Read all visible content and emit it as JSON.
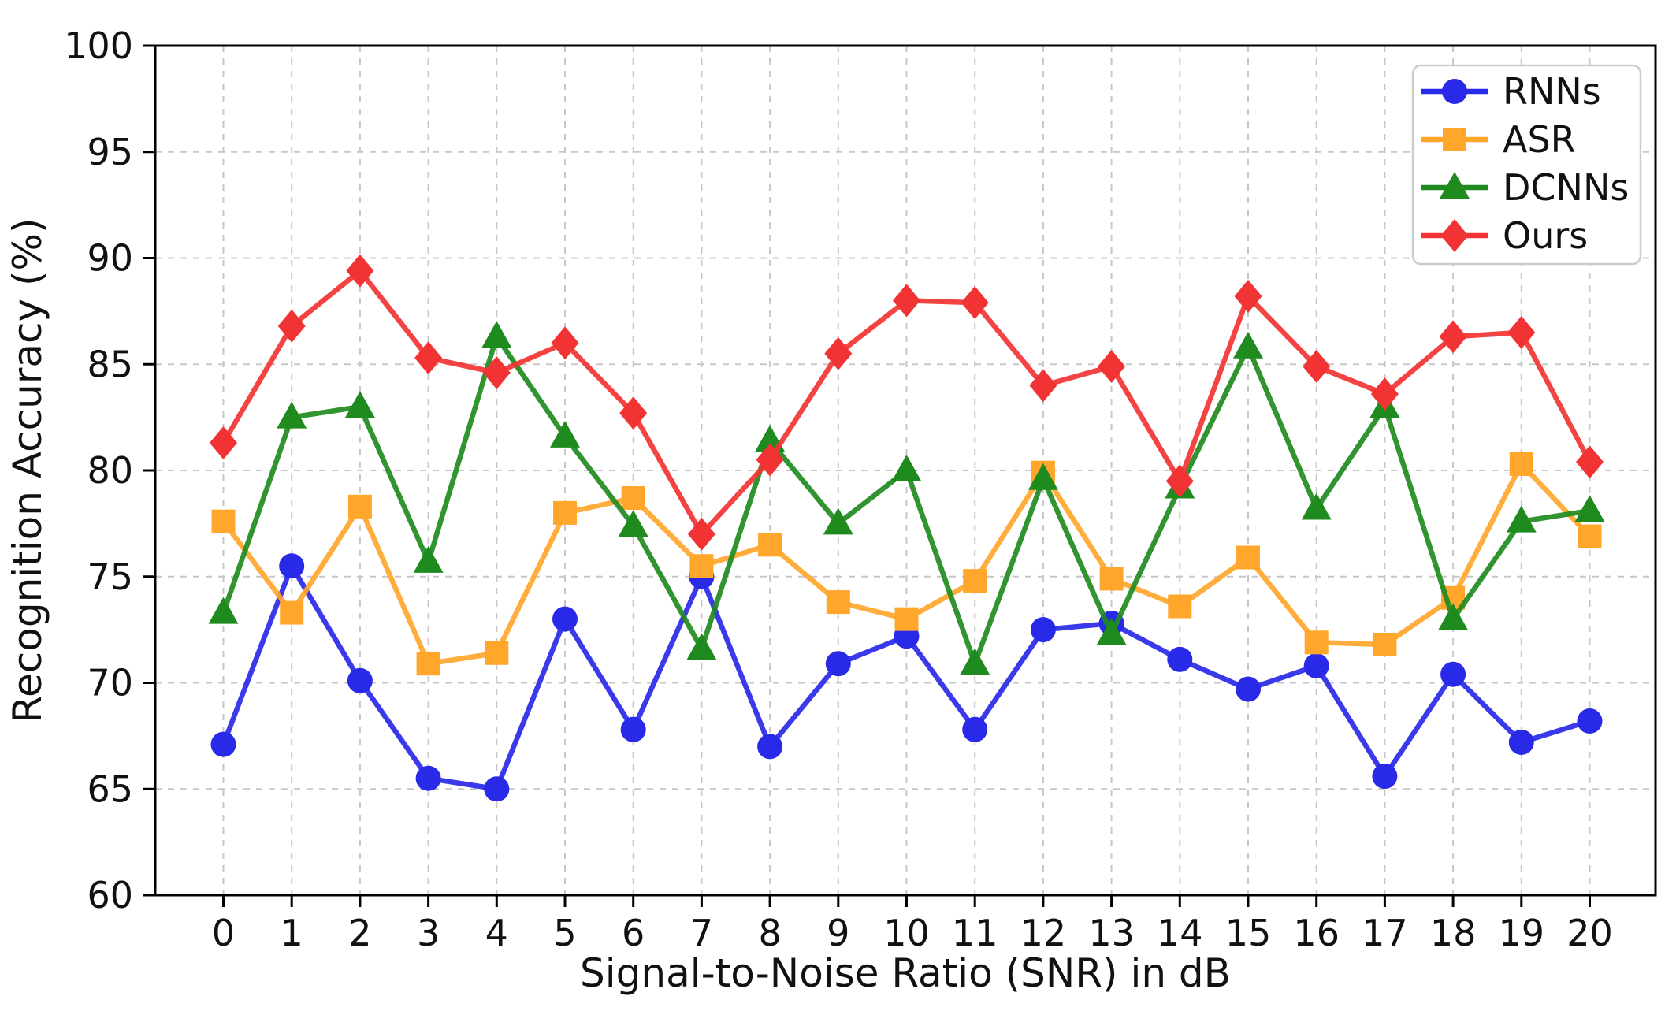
{
  "figure": {
    "background": "#ffffff",
    "spine_color": "#000000",
    "grid_color": "#c7c7c7",
    "text_color": "#111111"
  },
  "chart_data": {
    "type": "line",
    "title": "",
    "xlabel": "Signal-to-Noise Ratio (SNR) in dB",
    "ylabel": "Recognition Accuracy (%)",
    "x": [
      0,
      1,
      2,
      3,
      4,
      5,
      6,
      7,
      8,
      9,
      10,
      11,
      12,
      13,
      14,
      15,
      16,
      17,
      18,
      19,
      20
    ],
    "xticks": [
      0,
      1,
      2,
      3,
      4,
      5,
      6,
      7,
      8,
      9,
      10,
      11,
      12,
      13,
      14,
      15,
      16,
      17,
      18,
      19,
      20
    ],
    "yticks": [
      60,
      65,
      70,
      75,
      80,
      85,
      90,
      95,
      100
    ],
    "ylim": [
      60,
      100
    ],
    "grid": true,
    "legend_position": "upper right",
    "series": [
      {
        "name": "RNNs",
        "color": "#2929e8",
        "marker": "circle",
        "values": [
          67.1,
          75.5,
          70.1,
          65.5,
          65.0,
          73.0,
          67.8,
          75.0,
          67.0,
          70.9,
          72.2,
          67.8,
          72.5,
          72.8,
          71.1,
          69.7,
          70.8,
          65.6,
          70.4,
          67.2,
          68.2
        ]
      },
      {
        "name": "ASR",
        "color": "#ffa62b",
        "marker": "square",
        "values": [
          77.6,
          73.3,
          78.3,
          70.9,
          71.4,
          78.0,
          78.7,
          75.5,
          76.5,
          73.8,
          73.0,
          74.8,
          79.9,
          74.9,
          73.6,
          75.9,
          71.9,
          71.8,
          74.0,
          80.3,
          76.9
        ]
      },
      {
        "name": "DCNNs",
        "color": "#1f8b1f",
        "marker": "triangle",
        "values": [
          73.3,
          82.5,
          83.0,
          75.7,
          86.3,
          81.6,
          77.4,
          71.6,
          81.4,
          77.5,
          80.0,
          70.9,
          79.6,
          72.3,
          79.2,
          85.8,
          78.2,
          83.0,
          73.0,
          77.6,
          78.1
        ]
      },
      {
        "name": "Ours",
        "color": "#f23333",
        "marker": "diamond",
        "values": [
          81.3,
          86.8,
          89.4,
          85.3,
          84.6,
          86.0,
          82.7,
          77.0,
          80.5,
          85.5,
          88.0,
          87.9,
          84.0,
          84.9,
          79.5,
          88.2,
          84.9,
          83.6,
          86.3,
          86.5,
          80.4
        ]
      }
    ],
    "legend_entries": [
      "RNNs",
      "ASR",
      "DCNNs",
      "Ours"
    ]
  }
}
